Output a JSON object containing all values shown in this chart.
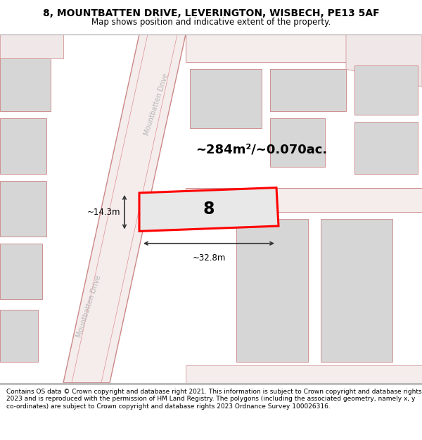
{
  "title_line1": "8, MOUNTBATTEN DRIVE, LEVERINGTON, WISBECH, PE13 5AF",
  "title_line2": "Map shows position and indicative extent of the property.",
  "footer_text": "Contains OS data © Crown copyright and database right 2021. This information is subject to Crown copyright and database rights 2023 and is reproduced with the permission of HM Land Registry. The polygons (including the associated geometry, namely x, y co-ordinates) are subject to Crown copyright and database rights 2023 Ordnance Survey 100026316.",
  "map_bg": "#efefef",
  "road_fill": "#f5e8e8",
  "road_edge": "#e09090",
  "bld_fill": "#d6d6d6",
  "bld_edge": "#d09090",
  "prop_fill": "#e8e8e8",
  "prop_edge": "#ff0000",
  "dim_color": "#333333",
  "label_color": "#b8b8b8",
  "area_text": "~284m²/~0.070ac.",
  "width_text": "~32.8m",
  "height_text": "~14.3m",
  "number_text": "8",
  "road_label": "Mountbatten Drive",
  "title_fontsize": 10,
  "subtitle_fontsize": 8.5,
  "area_fontsize": 13,
  "dim_fontsize": 8.5,
  "num_fontsize": 17,
  "road_fontsize": 7,
  "footer_fontsize": 6.5
}
